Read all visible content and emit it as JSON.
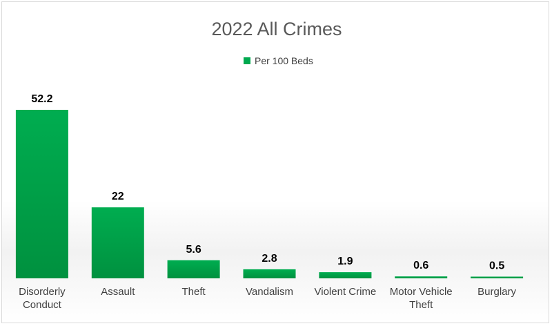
{
  "chart_data": {
    "type": "bar",
    "title": "2022 All Crimes",
    "legend": {
      "position": "top",
      "label": "Per 100 Beds"
    },
    "categories": [
      [
        "Disorderly",
        "Conduct"
      ],
      [
        "Assault"
      ],
      [
        "Theft"
      ],
      [
        "Vandalism"
      ],
      [
        "Violent Crime"
      ],
      [
        "Motor Vehicle",
        "Theft"
      ],
      [
        "Burglary"
      ]
    ],
    "series": [
      {
        "name": "Per 100 Beds",
        "values": [
          52.2,
          22,
          5.6,
          2.8,
          1.9,
          0.6,
          0.5
        ],
        "color": "#00a94f"
      }
    ],
    "data_labels": [
      "52.2",
      "22",
      "5.6",
      "2.8",
      "1.9",
      "0.6",
      "0.5"
    ],
    "xlabel": "",
    "ylabel": "",
    "ylim": [
      0,
      52.2
    ],
    "grid": false
  }
}
